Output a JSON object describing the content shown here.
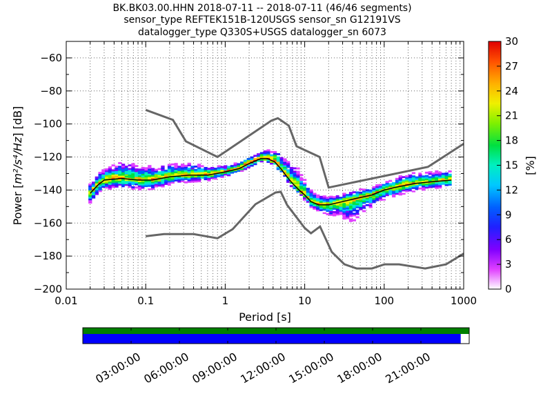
{
  "title_lines": [
    "BK.BK03.00.HHN   2018-07-11 -- 2018-07-11  (46/46 segments)",
    "sensor_type REFTEK151B-120USGS sensor_sn G12191VS",
    "datalogger_type Q330S+USGS datalogger_sn 6073"
  ],
  "chart_data": {
    "type": "heatmap",
    "xlabel": "Period [s]",
    "ylabel_prefix": "Power [",
    "ylabel_units": "m²/s⁴/Hz",
    "ylabel_suffix": "] [dB]",
    "x_scale": "log",
    "xlim": [
      0.01,
      1000
    ],
    "ylim": [
      -200,
      -50
    ],
    "x_ticks": [
      0.01,
      0.1,
      1,
      10,
      100,
      1000
    ],
    "x_tick_labels": [
      "0.01",
      "0.1",
      "1",
      "10",
      "100",
      "1000"
    ],
    "y_ticks": [
      -200,
      -180,
      -160,
      -140,
      -120,
      -100,
      -80,
      -60
    ],
    "y_tick_labels": [
      "−200",
      "−180",
      "−160",
      "−140",
      "−120",
      "−100",
      "−80",
      "−60"
    ],
    "grid": "dotted",
    "colorbar": {
      "label": "[%]",
      "range": [
        0,
        30
      ],
      "ticks": [
        0,
        3,
        6,
        9,
        12,
        15,
        18,
        21,
        24,
        27,
        30
      ],
      "tick_labels": [
        "0",
        "3",
        "6",
        "9",
        "12",
        "15",
        "18",
        "21",
        "24",
        "27",
        "30"
      ]
    },
    "noise_models": [
      {
        "name": "high-noise-model",
        "color": "#666666",
        "points": [
          [
            0.1,
            -91.5
          ],
          [
            0.22,
            -97.5
          ],
          [
            0.32,
            -110.5
          ],
          [
            0.8,
            -120
          ],
          [
            3.8,
            -98
          ],
          [
            4.6,
            -96.5
          ],
          [
            6.3,
            -101
          ],
          [
            7.9,
            -113.5
          ],
          [
            15.4,
            -120
          ],
          [
            20,
            -138.5
          ],
          [
            354.8,
            -126
          ],
          [
            1000,
            -112
          ]
        ]
      },
      {
        "name": "low-noise-model",
        "color": "#666666",
        "points": [
          [
            0.1,
            -168
          ],
          [
            0.17,
            -166.7
          ],
          [
            0.4,
            -166.7
          ],
          [
            0.8,
            -169.2
          ],
          [
            1.24,
            -163.7
          ],
          [
            2.4,
            -148.6
          ],
          [
            4.3,
            -141.5
          ],
          [
            5.0,
            -141.1
          ],
          [
            6.0,
            -149
          ],
          [
            10,
            -163
          ],
          [
            12,
            -166.2
          ],
          [
            15.6,
            -162.1
          ],
          [
            21.9,
            -177.5
          ],
          [
            31.6,
            -185
          ],
          [
            45,
            -187.5
          ],
          [
            70,
            -187.5
          ],
          [
            101,
            -185
          ],
          [
            154,
            -185
          ],
          [
            328,
            -187.5
          ],
          [
            600,
            -185
          ],
          [
            1000,
            -178.5
          ]
        ]
      }
    ],
    "median_curve": {
      "name": "mode",
      "color": "#000000",
      "points": [
        [
          0.02,
          -142
        ],
        [
          0.025,
          -137
        ],
        [
          0.03,
          -134
        ],
        [
          0.05,
          -133
        ],
        [
          0.08,
          -134
        ],
        [
          0.12,
          -134
        ],
        [
          0.2,
          -132
        ],
        [
          0.35,
          -131
        ],
        [
          0.6,
          -131
        ],
        [
          1.0,
          -129
        ],
        [
          1.5,
          -127
        ],
        [
          2.0,
          -124
        ],
        [
          2.8,
          -121
        ],
        [
          3.4,
          -121
        ],
        [
          4.2,
          -123
        ],
        [
          5.0,
          -127
        ],
        [
          6.0,
          -132
        ],
        [
          7.0,
          -136
        ],
        [
          8.5,
          -140
        ],
        [
          10,
          -143
        ],
        [
          12,
          -147
        ],
        [
          15,
          -149
        ],
        [
          20,
          -149
        ],
        [
          30,
          -147
        ],
        [
          45,
          -145
        ],
        [
          70,
          -143
        ],
        [
          100,
          -140
        ],
        [
          150,
          -138
        ],
        [
          250,
          -136
        ],
        [
          400,
          -135
        ],
        [
          700,
          -134
        ]
      ]
    },
    "psd_band": {
      "description_center_is_median": true,
      "center": [
        [
          0.02,
          -142
        ],
        [
          0.025,
          -137
        ],
        [
          0.03,
          -134
        ],
        [
          0.05,
          -133
        ],
        [
          0.08,
          -134
        ],
        [
          0.12,
          -134
        ],
        [
          0.2,
          -132
        ],
        [
          0.35,
          -131
        ],
        [
          0.6,
          -131
        ],
        [
          1.0,
          -129
        ],
        [
          1.5,
          -127
        ],
        [
          2.0,
          -124
        ],
        [
          2.8,
          -121
        ],
        [
          3.4,
          -121
        ],
        [
          4.2,
          -123
        ],
        [
          5.0,
          -127
        ],
        [
          6.0,
          -132
        ],
        [
          7.0,
          -136
        ],
        [
          8.5,
          -140
        ],
        [
          10,
          -143
        ],
        [
          12,
          -147
        ],
        [
          15,
          -149
        ],
        [
          20,
          -149
        ],
        [
          30,
          -147
        ],
        [
          45,
          -145
        ],
        [
          70,
          -143
        ],
        [
          100,
          -140
        ],
        [
          150,
          -138
        ],
        [
          250,
          -136
        ],
        [
          400,
          -135
        ],
        [
          700,
          -134
        ]
      ],
      "lower_offset": [
        [
          0.02,
          6
        ],
        [
          0.05,
          6
        ],
        [
          0.1,
          6
        ],
        [
          0.5,
          4
        ],
        [
          1,
          3
        ],
        [
          3,
          2
        ],
        [
          8,
          3
        ],
        [
          15,
          4
        ],
        [
          25,
          8
        ],
        [
          40,
          14
        ],
        [
          60,
          8
        ],
        [
          100,
          6
        ],
        [
          200,
          5
        ],
        [
          700,
          4
        ]
      ],
      "upper_offset": [
        [
          0.02,
          5
        ],
        [
          0.05,
          9
        ],
        [
          0.1,
          8
        ],
        [
          0.5,
          6
        ],
        [
          1,
          3
        ],
        [
          3,
          3
        ],
        [
          8,
          12
        ],
        [
          12,
          6
        ],
        [
          20,
          4
        ],
        [
          100,
          4
        ],
        [
          200,
          6
        ],
        [
          700,
          5
        ]
      ]
    }
  },
  "timeline": {
    "tick_labels": [
      "03:00:00",
      "06:00:00",
      "09:00:00",
      "12:00:00",
      "15:00:00",
      "18:00:00",
      "21:00:00"
    ],
    "hours": [
      3,
      6,
      9,
      12,
      15,
      18,
      21
    ],
    "total_hours": 24,
    "data_coverage_fraction": 0.978,
    "top_bar_color": "#008000",
    "bottom_bar_color": "#0000ff"
  }
}
